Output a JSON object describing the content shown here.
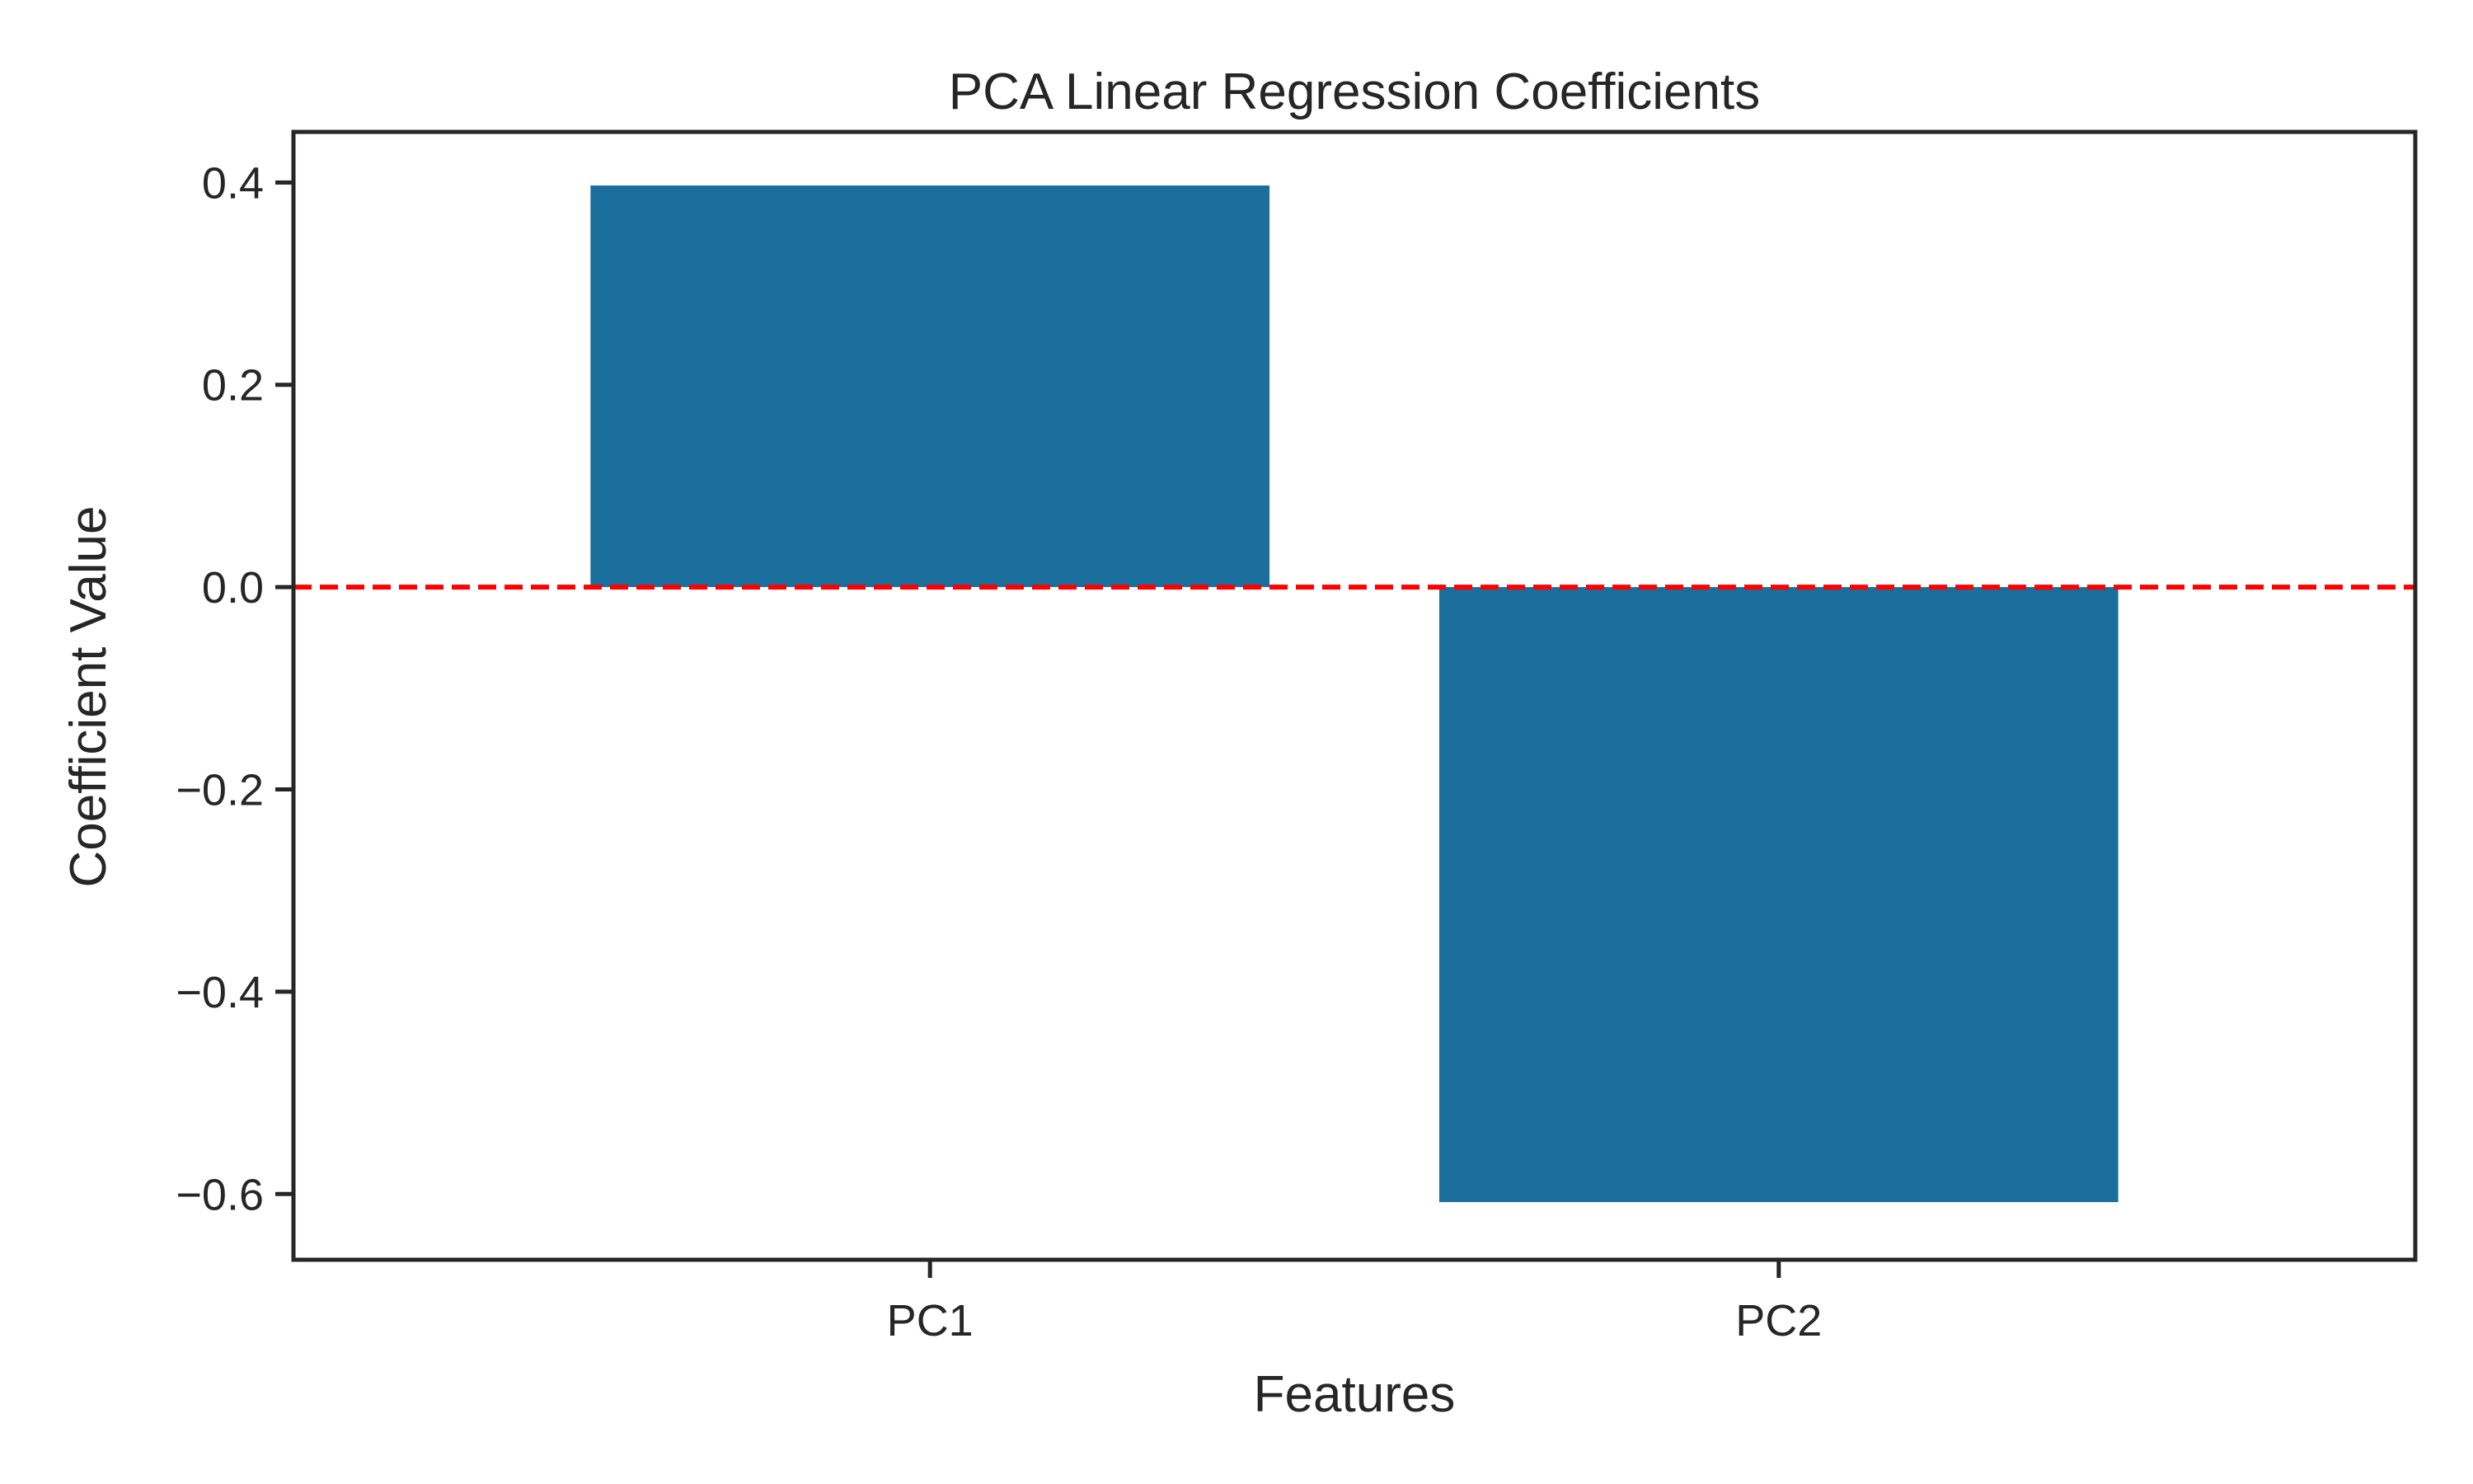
{
  "chart_data": {
    "type": "bar",
    "title": "PCA Linear Regression Coefficients",
    "xlabel": "Features",
    "ylabel": "Coefficient Value",
    "categories": [
      "PC1",
      "PC2"
    ],
    "values": [
      0.397,
      -0.608
    ],
    "ylim": [
      -0.665,
      0.45
    ],
    "yticks": [
      0.4,
      0.2,
      0.0,
      -0.2,
      -0.4,
      -0.6
    ],
    "ytick_labels": [
      "0.4",
      "0.2",
      "0.0",
      "−0.2",
      "−0.4",
      "−0.6"
    ],
    "reference_line": {
      "y": 0.0,
      "style": "dashed"
    },
    "grid": false,
    "colors": {
      "bar": "#1a6e9c",
      "reference_line": "#ff0000",
      "axes": "#262626"
    }
  }
}
